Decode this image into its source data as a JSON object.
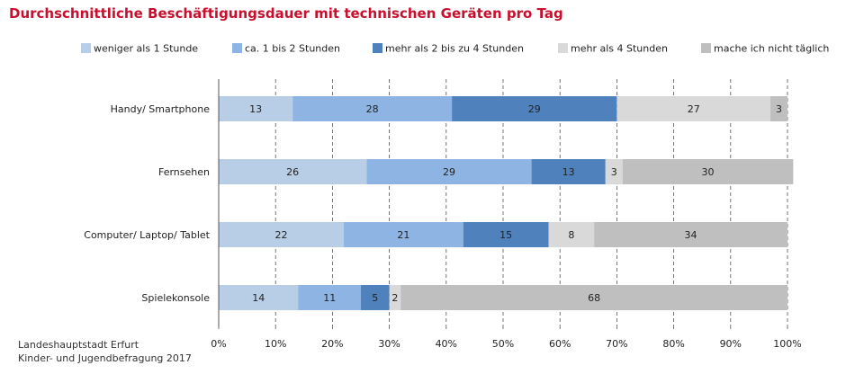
{
  "chart_data": {
    "type": "bar",
    "orientation": "horizontal",
    "stacked": true,
    "title": "Durchschnittliche Beschäftigungsdauer mit technischen Geräten pro Tag",
    "categories": [
      "Handy/ Smartphone",
      "Fernsehen",
      "Computer/ Laptop/ Tablet",
      "Spielekonsole"
    ],
    "series": [
      {
        "name": "weniger als 1 Stunde",
        "color": "#b8cde6",
        "values": [
          13,
          26,
          22,
          14
        ]
      },
      {
        "name": "ca. 1 bis 2 Stunden",
        "color": "#8eb4e3",
        "values": [
          28,
          29,
          21,
          11
        ]
      },
      {
        "name": "mehr als 2 bis zu 4 Stunden",
        "color": "#4f81bd",
        "values": [
          29,
          13,
          15,
          5
        ]
      },
      {
        "name": "mehr als 4 Stunden",
        "color": "#d9d9d9",
        "values": [
          27,
          3,
          8,
          2
        ]
      },
      {
        "name": "mache ich nicht täglich",
        "color": "#bfbfbf",
        "values": [
          3,
          30,
          34,
          68
        ]
      }
    ],
    "xlim": [
      0,
      100
    ],
    "xticks": [
      "0%",
      "10%",
      "20%",
      "30%",
      "40%",
      "50%",
      "60%",
      "70%",
      "80%",
      "90%",
      "100%"
    ],
    "grid": true,
    "legend": "top"
  },
  "source": {
    "line1": "Landeshauptstadt Erfurt",
    "line2": "Kinder- und Jugendbefragung 2017"
  }
}
